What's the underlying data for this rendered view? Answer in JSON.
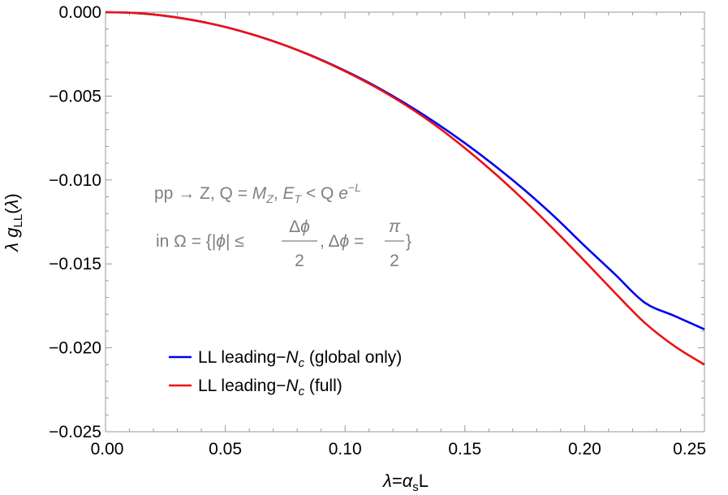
{
  "chart_data": {
    "type": "line",
    "xlabel": "λ=αsL",
    "ylabel": "λ gLL(λ)",
    "xlim": [
      0,
      0.25
    ],
    "ylim": [
      -0.025,
      0
    ],
    "xticks": [
      "0.00",
      "0.05",
      "0.10",
      "0.15",
      "0.20",
      "0.25"
    ],
    "yticks": [
      "0.000",
      "−0.005",
      "−0.010",
      "−0.015",
      "−0.020",
      "−0.025"
    ],
    "grid": false,
    "legend_position": "bottom-left",
    "annotation": {
      "line1": "pp → Z, Q = MZ, ET < Q e−L",
      "line2": "in Ω = {|ϕ| ≤ Δϕ/2, Δϕ = π/2}"
    },
    "x": [
      0,
      0.0125,
      0.025,
      0.0375,
      0.05,
      0.0625,
      0.075,
      0.0875,
      0.1,
      0.1125,
      0.125,
      0.1375,
      0.15,
      0.1625,
      0.175,
      0.1875,
      0.2,
      0.2125,
      0.225,
      0.2375,
      0.25
    ],
    "series": [
      {
        "name": "LL leading−Nc (global only)",
        "color": "#0000ee",
        "values": [
          0,
          -5e-05,
          -0.00022,
          -0.0005,
          -0.00088,
          -0.00138,
          -0.00198,
          -0.00268,
          -0.00349,
          -0.0044,
          -0.00543,
          -0.00656,
          -0.0078,
          -0.00915,
          -0.01061,
          -0.0122,
          -0.01393,
          -0.0156,
          -0.0173,
          -0.0181,
          -0.0189
        ]
      },
      {
        "name": "LL leading−Nc (full)",
        "color": "#ee1111",
        "values": [
          0,
          -5e-05,
          -0.00022,
          -0.0005,
          -0.00088,
          -0.00138,
          -0.00198,
          -0.0027,
          -0.00352,
          -0.00445,
          -0.00551,
          -0.00672,
          -0.0081,
          -0.00961,
          -0.01125,
          -0.013,
          -0.01483,
          -0.0167,
          -0.0185,
          -0.0199,
          -0.021
        ]
      }
    ]
  }
}
